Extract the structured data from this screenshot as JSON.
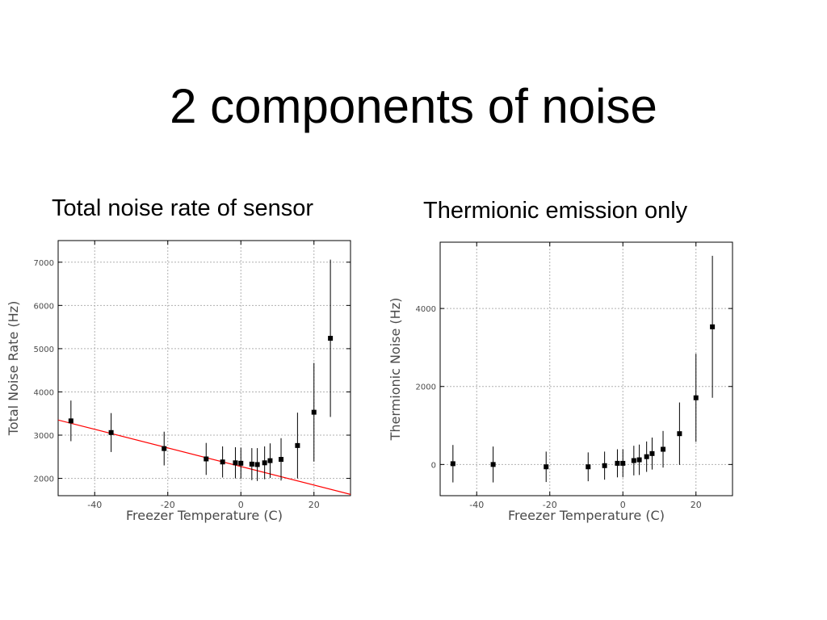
{
  "slide": {
    "title": "2 components of noise",
    "left_subtitle": "Total noise rate of sensor",
    "right_subtitle": "Thermionic emission only"
  },
  "colors": {
    "marker": "#000000",
    "fit_line": "#ff0000",
    "grid": "#b0b0b0",
    "axis_text": "#4a4a4a"
  },
  "chart_data": [
    {
      "type": "scatter",
      "xlabel": "Freezer Temperature (C)",
      "ylabel": "Total Noise Rate (Hz)",
      "xlim": [
        -50,
        30
      ],
      "ylim": [
        1600,
        7500
      ],
      "x_ticks": [
        -40,
        -20,
        0,
        20
      ],
      "y_ticks": [
        2000,
        3000,
        4000,
        5000,
        6000,
        7000
      ],
      "grid": true,
      "error_bars": true,
      "points": [
        {
          "x": -46.5,
          "y": 3330,
          "err": 470
        },
        {
          "x": -35.5,
          "y": 3060,
          "err": 450
        },
        {
          "x": -21,
          "y": 2690,
          "err": 390
        },
        {
          "x": -9.5,
          "y": 2450,
          "err": 370
        },
        {
          "x": -5,
          "y": 2380,
          "err": 360
        },
        {
          "x": -1.5,
          "y": 2360,
          "err": 360
        },
        {
          "x": 0,
          "y": 2350,
          "err": 360
        },
        {
          "x": 3,
          "y": 2330,
          "err": 370
        },
        {
          "x": 4.5,
          "y": 2320,
          "err": 380
        },
        {
          "x": 6.5,
          "y": 2360,
          "err": 380
        },
        {
          "x": 8,
          "y": 2410,
          "err": 400
        },
        {
          "x": 11,
          "y": 2440,
          "err": 490
        },
        {
          "x": 15.5,
          "y": 2760,
          "err": 760
        },
        {
          "x": 20,
          "y": 3530,
          "err": 1140
        },
        {
          "x": 24.5,
          "y": 5240,
          "err": 1820
        }
      ],
      "fit_line": {
        "x": [
          -50,
          30
        ],
        "y": [
          3350,
          1630
        ]
      }
    },
    {
      "type": "scatter",
      "xlabel": "Freezer Temperature (C)",
      "ylabel": "Thermionic Noise (Hz)",
      "xlim": [
        -50,
        30
      ],
      "ylim": [
        -800,
        5700
      ],
      "x_ticks": [
        -40,
        -20,
        0,
        20
      ],
      "y_ticks": [
        0,
        2000,
        4000
      ],
      "grid": true,
      "error_bars": true,
      "points": [
        {
          "x": -46.5,
          "y": 20,
          "err": 480
        },
        {
          "x": -35.5,
          "y": 0,
          "err": 460
        },
        {
          "x": -21,
          "y": -60,
          "err": 390
        },
        {
          "x": -9.5,
          "y": -60,
          "err": 370
        },
        {
          "x": -5,
          "y": -30,
          "err": 360
        },
        {
          "x": -1.5,
          "y": 30,
          "err": 360
        },
        {
          "x": 0,
          "y": 30,
          "err": 360
        },
        {
          "x": 3,
          "y": 100,
          "err": 380
        },
        {
          "x": 4.5,
          "y": 120,
          "err": 390
        },
        {
          "x": 6.5,
          "y": 200,
          "err": 390
        },
        {
          "x": 8,
          "y": 280,
          "err": 410
        },
        {
          "x": 11,
          "y": 390,
          "err": 470
        },
        {
          "x": 15.5,
          "y": 790,
          "err": 800
        },
        {
          "x": 20,
          "y": 1710,
          "err": 1130
        },
        {
          "x": 24.5,
          "y": 3530,
          "err": 1820
        }
      ]
    }
  ]
}
